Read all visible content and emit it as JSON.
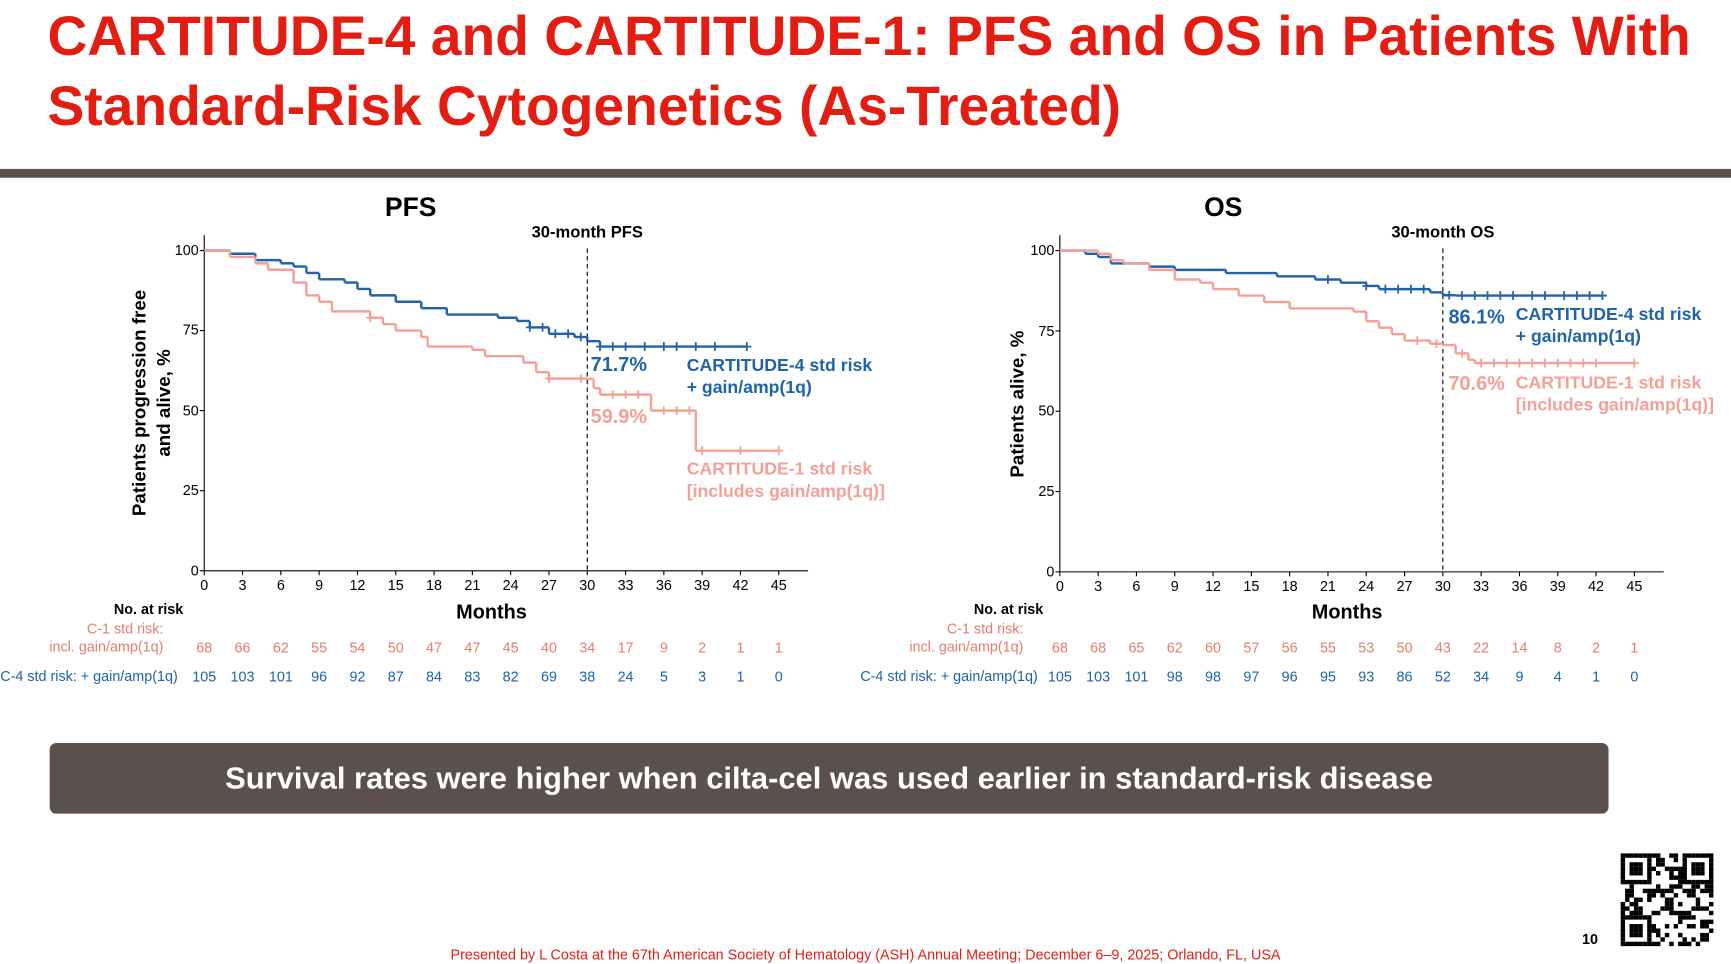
{
  "header": {
    "title": "CARTITUDE-4 and CARTITUDE-1: PFS and OS in Patients With Standard-Risk Cytogenetics (As-Treated)"
  },
  "chart_data": [
    {
      "type": "step",
      "title": "PFS",
      "xlabel": "Months",
      "ylabel": "Patients progression free\nand alive, %",
      "xlim": [
        0,
        47.3
      ],
      "ylim": [
        0,
        104.8
      ],
      "xticks": [
        0,
        3,
        6,
        9,
        12,
        15,
        18,
        21,
        24,
        27,
        30,
        33,
        36,
        39,
        42,
        45
      ],
      "yticks": [
        0,
        25,
        50,
        75,
        100
      ],
      "reference_line": {
        "x": 30,
        "label": "30-month PFS"
      },
      "series": [
        {
          "name": "CARTITUDE-4 std risk\n+ gain/amp(1q)",
          "color": "#1f63a8",
          "x": [
            0,
            2,
            4,
            6,
            7,
            8,
            9,
            11,
            12,
            13,
            15,
            17,
            19,
            23,
            24.5,
            25.5,
            27,
            29,
            30,
            31,
            42.5
          ],
          "values": [
            100,
            99,
            97,
            96,
            95,
            93,
            91,
            90,
            88,
            86,
            84,
            82,
            80,
            79,
            78,
            76,
            74,
            73,
            71.7,
            70,
            70
          ],
          "censored_x": [
            25.5,
            26.5,
            27.5,
            28.5,
            29.5,
            31,
            32,
            33,
            34.5,
            36,
            37,
            38.5,
            40
          ],
          "landmark": {
            "value": 71.7,
            "label": "71.7%"
          }
        },
        {
          "name": "CARTITUDE-1 std risk\n[includes gain/amp(1q)]",
          "color": "#f3a097",
          "x": [
            0,
            2,
            4,
            5,
            7,
            8,
            9,
            10,
            13,
            14,
            15,
            17,
            17.5,
            21,
            22,
            25,
            26,
            27,
            30,
            30.5,
            31,
            35,
            38.5,
            45
          ],
          "values": [
            100,
            98,
            96,
            94,
            90,
            86,
            84,
            81,
            79,
            77,
            75,
            73,
            70,
            69,
            67,
            65,
            62,
            60,
            59.9,
            57,
            55,
            50,
            37.5,
            37.5
          ],
          "censored_x": [
            13,
            27,
            29.5,
            32,
            33,
            34,
            36,
            37,
            38,
            39,
            42
          ],
          "landmark": {
            "value": 59.9,
            "label": "59.9%"
          }
        }
      ],
      "risk_table": {
        "title": "No. at risk",
        "rows": [
          {
            "label": "C-1 std risk:\nincl. gain/amp(1q)",
            "color": "#e57d72",
            "values": [
              68,
              66,
              62,
              55,
              54,
              50,
              47,
              47,
              45,
              40,
              34,
              17,
              9,
              2,
              1,
              1
            ]
          },
          {
            "label": "C-4 std risk: + gain/amp(1q)",
            "color": "#1f63a8",
            "values": [
              105,
              103,
              101,
              96,
              92,
              87,
              84,
              83,
              82,
              69,
              38,
              24,
              5,
              3,
              1,
              0
            ]
          }
        ]
      }
    },
    {
      "type": "step",
      "title": "OS",
      "xlabel": "Months",
      "ylabel": "Patients alive, %",
      "xlim": [
        0,
        47.3
      ],
      "ylim": [
        0,
        104.8
      ],
      "xticks": [
        0,
        3,
        6,
        9,
        12,
        15,
        18,
        21,
        24,
        27,
        30,
        33,
        36,
        39,
        42,
        45
      ],
      "yticks": [
        0,
        25,
        50,
        75,
        100
      ],
      "reference_line": {
        "x": 30,
        "label": "30-month OS"
      },
      "series": [
        {
          "name": "CARTITUDE-4 std risk\n+ gain/amp(1q)",
          "color": "#1f63a8",
          "x": [
            0,
            2,
            3,
            4,
            7,
            9,
            13,
            17,
            20,
            22,
            24,
            25,
            29,
            30,
            31,
            42.5
          ],
          "values": [
            100,
            99,
            98,
            96,
            95,
            94,
            93,
            92,
            91,
            90,
            89,
            88,
            87,
            86.1,
            86,
            86
          ],
          "censored_x": [
            21,
            24,
            25.5,
            26.5,
            27.5,
            28.5,
            30.5,
            31.5,
            32.5,
            33.5,
            34.5,
            35.5,
            37,
            38,
            39.5,
            40.5,
            41.5
          ],
          "landmark": {
            "value": 86.1,
            "label": "86.1%"
          }
        },
        {
          "name": "CARTITUDE-1 std risk\n[includes gain/amp(1q)]",
          "color": "#f3a097",
          "x": [
            0,
            3,
            4,
            5,
            7,
            9,
            11,
            12,
            14,
            16,
            18,
            23,
            24,
            25,
            26,
            27,
            29,
            30,
            31,
            32,
            32.5,
            45
          ],
          "values": [
            100,
            99,
            97,
            96,
            94,
            91,
            90,
            88,
            86,
            84,
            82,
            81,
            78,
            76,
            74,
            72,
            71,
            70.6,
            68,
            66,
            65,
            65
          ],
          "censored_x": [
            28,
            29.5,
            31.5,
            33,
            34,
            35,
            36,
            37,
            38,
            39,
            40,
            41,
            42
          ],
          "landmark": {
            "value": 70.6,
            "label": "70.6%"
          }
        }
      ],
      "risk_table": {
        "title": "No. at risk",
        "rows": [
          {
            "label": "C-1 std risk:\nincl. gain/amp(1q)",
            "color": "#e57d72",
            "values": [
              68,
              68,
              65,
              62,
              60,
              57,
              56,
              55,
              53,
              50,
              43,
              22,
              14,
              8,
              2,
              1
            ]
          },
          {
            "label": "C-4 std risk: + gain/amp(1q)",
            "color": "#1f63a8",
            "values": [
              105,
              103,
              101,
              98,
              98,
              97,
              96,
              95,
              93,
              86,
              52,
              34,
              9,
              4,
              1,
              0
            ]
          }
        ]
      }
    }
  ],
  "banner": "Survival rates were higher when cilta-cel was used earlier in standard-risk disease",
  "footer": "Presented by L Costa at the 67th American Society of Hematology (ASH) Annual Meeting; December 6–9, 2025; Orlando, FL, USA",
  "page_number": "10"
}
